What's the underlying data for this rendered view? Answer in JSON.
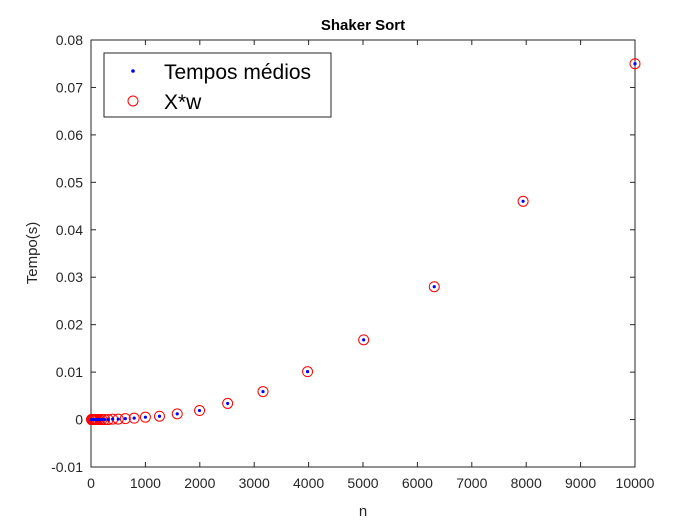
{
  "chart_data": {
    "type": "scatter",
    "title": "Shaker Sort",
    "xlabel": "n",
    "ylabel": "Tempo(s)",
    "xlim": [
      0,
      10000
    ],
    "ylim": [
      -0.01,
      0.08
    ],
    "xticks": [
      0,
      1000,
      2000,
      3000,
      4000,
      5000,
      6000,
      7000,
      8000,
      9000,
      10000
    ],
    "yticks": [
      -0.01,
      0,
      0.01,
      0.02,
      0.03,
      0.04,
      0.05,
      0.06,
      0.07,
      0.08
    ],
    "xtick_labels": [
      "0",
      "1000",
      "2000",
      "3000",
      "4000",
      "5000",
      "6000",
      "7000",
      "8000",
      "9000",
      "10000"
    ],
    "ytick_labels": [
      "-0.01",
      "0",
      "0.01",
      "0.02",
      "0.03",
      "0.04",
      "0.05",
      "0.06",
      "0.07",
      "0.08"
    ],
    "grid": false,
    "legend_position": "top-left",
    "series": [
      {
        "name": "Tempos médios",
        "marker": "dot",
        "color": "#0000ff",
        "x": [
          10,
          13,
          16,
          20,
          25,
          32,
          40,
          50,
          63,
          79,
          100,
          126,
          158,
          200,
          251,
          316,
          398,
          501,
          631,
          794,
          1000,
          1259,
          1585,
          1995,
          2512,
          3162,
          3981,
          5012,
          6310,
          7943,
          10000
        ],
        "y": [
          0,
          0,
          0,
          0,
          0,
          0,
          0,
          0,
          0,
          0,
          0,
          0,
          0,
          0,
          0,
          0,
          0.0001,
          0.0001,
          0.0002,
          0.0003,
          0.0005,
          0.0007,
          0.0012,
          0.0019,
          0.0034,
          0.0059,
          0.0101,
          0.0168,
          0.028,
          0.046,
          0.075
        ]
      },
      {
        "name": "X*w",
        "marker": "circle",
        "color": "#ff0000",
        "x": [
          10,
          13,
          16,
          20,
          25,
          32,
          40,
          50,
          63,
          79,
          100,
          126,
          158,
          200,
          251,
          316,
          398,
          501,
          631,
          794,
          1000,
          1259,
          1585,
          1995,
          2512,
          3162,
          3981,
          5012,
          6310,
          7943,
          10000
        ],
        "y": [
          0,
          0,
          0,
          0,
          0,
          0,
          0,
          0,
          0,
          0,
          0,
          0,
          0,
          0,
          0,
          0,
          0.0001,
          0.0001,
          0.0002,
          0.0003,
          0.0005,
          0.0007,
          0.0012,
          0.0019,
          0.0034,
          0.0059,
          0.0101,
          0.0168,
          0.028,
          0.046,
          0.075
        ]
      }
    ]
  }
}
